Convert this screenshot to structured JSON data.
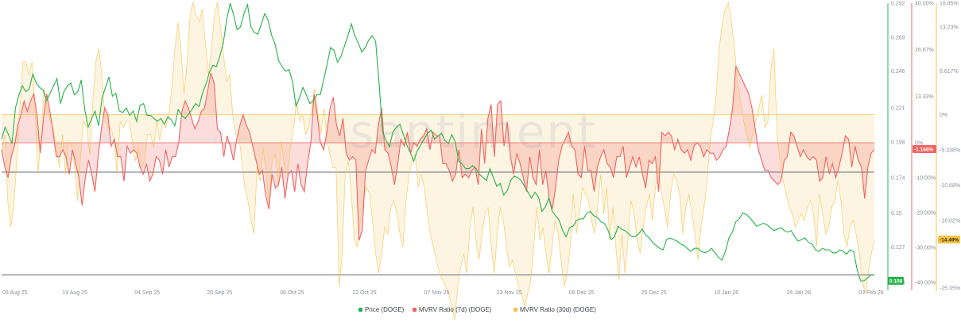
{
  "chart_data": {
    "type": "line",
    "watermark": "santiment",
    "x_tick_labels": [
      "03 Aug 25",
      "19 Aug 25",
      "04 Sep 25",
      "20 Sep 25",
      "06 Oct 25",
      "22 Oct 25",
      "07 Nov 25",
      "23 Nov 25",
      "09 Dec 25",
      "25 Dec 25",
      "10 Jan 26",
      "26 Jan 26",
      "03 Feb 26"
    ],
    "axes": {
      "price": {
        "ticks": [
          "0.292",
          "0.269",
          "0.246",
          "0.221",
          "0.198",
          "0.174",
          "0.15",
          "0.127",
          "0.103"
        ],
        "ylim": [
          0.103,
          0.292
        ],
        "color": "#26b24b"
      },
      "mvrv7d": {
        "ticks": [
          "40.00%",
          "26.67%",
          "13.33%",
          "0%",
          "-10.00%",
          "-20.00%",
          "-30.00%",
          "-40.00%"
        ],
        "ylim": [
          -40,
          40
        ],
        "color": "#f06461"
      },
      "mvrv30d": {
        "ticks": [
          "16.85%",
          "13.23%",
          "6.617%",
          "0%",
          "-5.338%",
          "-10.68%",
          "-16.02%",
          "-25.35%"
        ],
        "ylim": [
          -25.35,
          16.85
        ],
        "color": "#f5c34a"
      }
    },
    "badges": {
      "price": {
        "text": "0.108",
        "bg": "#26b24b",
        "fg": "#ffffff"
      },
      "mvrv7d": {
        "text": "-1.166%",
        "bg": "#f06461",
        "fg": "#ffffff"
      },
      "mvrv30d": {
        "text": "-14.49%",
        "bg": "#f5c34a",
        "fg": "#3a2f00"
      }
    },
    "series": [
      {
        "name": "Price (DOGE)",
        "color": "#26b24b",
        "axis": "price",
        "values": [
          0.2,
          0.208,
          0.203,
          0.197,
          0.221,
          0.23,
          0.236,
          0.232,
          0.234,
          0.244,
          0.238,
          0.235,
          0.233,
          0.226,
          0.231,
          0.236,
          0.241,
          0.224,
          0.232,
          0.236,
          0.238,
          0.23,
          0.232,
          0.24,
          0.22,
          0.208,
          0.214,
          0.219,
          0.209,
          0.228,
          0.235,
          0.242,
          0.229,
          0.231,
          0.219,
          0.218,
          0.221,
          0.216,
          0.219,
          0.212,
          0.223,
          0.224,
          0.216,
          0.216,
          0.214,
          0.212,
          0.214,
          0.21,
          0.215,
          0.213,
          0.209,
          0.22,
          0.216,
          0.214,
          0.217,
          0.22,
          0.224,
          0.222,
          0.231,
          0.237,
          0.245,
          0.25,
          0.249,
          0.256,
          0.265,
          0.281,
          0.292,
          0.284,
          0.274,
          0.276,
          0.285,
          0.291,
          0.276,
          0.272,
          0.271,
          0.278,
          0.285,
          0.28,
          0.27,
          0.264,
          0.253,
          0.249,
          0.246,
          0.247,
          0.239,
          0.222,
          0.228,
          0.235,
          0.23,
          0.224,
          0.226,
          0.23,
          0.23,
          0.24,
          0.251,
          0.262,
          0.26,
          0.252,
          0.256,
          0.263,
          0.27,
          0.278,
          0.27,
          0.265,
          0.259,
          0.262,
          0.267,
          0.27,
          0.266,
          0.238,
          0.205,
          0.199,
          0.195,
          0.205,
          0.208,
          0.21,
          0.203,
          0.196,
          0.191,
          0.185,
          0.192,
          0.196,
          0.2,
          0.204,
          0.206,
          0.2,
          0.202,
          0.204,
          0.199,
          0.197,
          0.203,
          0.198,
          0.185,
          0.183,
          0.18,
          0.18,
          0.182,
          0.18,
          0.176,
          0.174,
          0.172,
          0.18,
          0.174,
          0.168,
          0.17,
          0.162,
          0.165,
          0.172,
          0.175,
          0.174,
          0.172,
          0.168,
          0.164,
          0.16,
          0.164,
          0.161,
          0.151,
          0.154,
          0.16,
          0.151,
          0.148,
          0.145,
          0.138,
          0.134,
          0.14,
          0.141,
          0.145,
          0.146,
          0.146,
          0.15,
          0.151,
          0.148,
          0.147,
          0.144,
          0.143,
          0.139,
          0.132,
          0.134,
          0.141,
          0.139,
          0.138,
          0.136,
          0.134,
          0.134,
          0.136,
          0.139,
          0.135,
          0.133,
          0.13,
          0.128,
          0.126,
          0.125,
          0.132,
          0.133,
          0.132,
          0.131,
          0.129,
          0.128,
          0.126,
          0.124,
          0.126,
          0.126,
          0.124,
          0.123,
          0.124,
          0.126,
          0.123,
          0.12,
          0.118,
          0.124,
          0.133,
          0.137,
          0.144,
          0.146,
          0.15,
          0.149,
          0.147,
          0.144,
          0.141,
          0.142,
          0.143,
          0.142,
          0.14,
          0.138,
          0.139,
          0.14,
          0.138,
          0.137,
          0.138,
          0.134,
          0.131,
          0.132,
          0.133,
          0.13,
          0.129,
          0.125,
          0.124,
          0.126,
          0.125,
          0.125,
          0.123,
          0.123,
          0.125,
          0.124,
          0.122,
          0.125,
          0.124,
          0.112,
          0.104,
          0.104,
          0.106,
          0.108,
          0.108
        ]
      },
      {
        "name": "MVRV Ratio (7d) (DOGE)",
        "color": "#f06461",
        "axis": "mvrv7d",
        "values": [
          -2,
          -7,
          -10,
          -4,
          -1,
          5,
          8,
          12,
          9,
          12,
          14,
          8,
          -3,
          7,
          14,
          9,
          3,
          -4,
          -4,
          -2,
          -4,
          -9,
          -2,
          -6,
          -10,
          -18,
          -10,
          -5,
          -9,
          -14,
          -4,
          4,
          10,
          8,
          -1,
          1,
          -4,
          -4,
          -11,
          -1,
          -3,
          -2,
          -3,
          -7,
          -9,
          -6,
          -11,
          -9,
          -4,
          -5,
          -9,
          -2,
          -7,
          -4,
          -4,
          0,
          9,
          12,
          10,
          7,
          4,
          6,
          9,
          10,
          15,
          20,
          17,
          4,
          3,
          -4,
          2,
          -1,
          -5,
          1,
          5,
          8,
          5,
          3,
          -1,
          -5,
          -9,
          -8,
          -15,
          -19,
          -9,
          -13,
          -12,
          -7,
          -16,
          -9,
          -8,
          -14,
          -6,
          -12,
          -14,
          -6,
          0,
          14,
          8,
          0,
          -2,
          3,
          10,
          13,
          5,
          2,
          7,
          -3,
          -5,
          -4,
          -5,
          -28,
          -25,
          -8,
          -5,
          -2,
          -3,
          5,
          10,
          -2,
          -3,
          -7,
          -12,
          -6,
          1,
          -1,
          3,
          -3,
          0,
          -1,
          1,
          2,
          4,
          -2,
          3,
          2,
          2,
          -6,
          -6,
          -8,
          -11,
          -9,
          -2,
          -10,
          -9,
          -10,
          -8,
          -7,
          -12,
          4,
          -6,
          7,
          11,
          -4,
          11,
          12,
          -1,
          6,
          -4,
          -9,
          -3,
          -6,
          -10,
          -14,
          -4,
          -10,
          -12,
          -2,
          -12,
          -8,
          -16,
          -19,
          -13,
          -5,
          -1,
          1,
          3,
          -1,
          -2,
          -9,
          -10,
          -1,
          -8,
          -8,
          -14,
          -7,
          -4,
          -2,
          -6,
          -7,
          -10,
          -4,
          -4,
          -1,
          -10,
          -7,
          -4,
          -7,
          -4,
          -9,
          -13,
          -5,
          -6,
          -4,
          -14,
          3,
          2,
          3,
          2,
          -2,
          1,
          -2,
          -3,
          -2,
          -5,
          -1,
          0,
          -1,
          -4,
          -2,
          -3,
          -3,
          -5,
          -4,
          -2,
          -1,
          4,
          10,
          22,
          20,
          18,
          16,
          14,
          10,
          4,
          -2,
          -5,
          -8,
          -8,
          -10,
          -11,
          -12,
          -11,
          -5,
          -4,
          3,
          2,
          -1,
          -4,
          -2,
          -4,
          -5,
          -4,
          -5,
          -11,
          -10,
          -4,
          -9,
          -6,
          -10,
          -7,
          -3,
          2,
          1,
          -7,
          -1,
          -5,
          -7,
          -16,
          -7,
          -3,
          -2
        ]
      },
      {
        "name": "MVRV Ratio (30d) (DOGE)",
        "color": "#f5c34a",
        "axis": "mvrv30d",
        "values": [
          -6,
          -3,
          -13,
          -17,
          -14,
          -7,
          1,
          8,
          8,
          6,
          8,
          1,
          -9,
          -3,
          4,
          1,
          -1,
          -2,
          -5,
          -8,
          -3,
          -9,
          -4,
          -5,
          -8,
          -13,
          -6,
          -1,
          -2,
          -6,
          2,
          8,
          10,
          6,
          -1,
          -2,
          -2,
          -4,
          -9,
          -1,
          -2,
          -1,
          -1,
          -4,
          -7,
          -5,
          -8,
          -7,
          -3,
          -3,
          -5,
          -1,
          -4,
          -1,
          -2,
          0,
          4,
          10,
          14,
          10,
          3,
          8,
          15,
          17,
          15,
          14,
          16,
          11,
          6,
          10,
          15,
          17,
          13,
          9,
          5,
          6,
          0,
          -3,
          -3,
          -7,
          -11,
          -13,
          -16,
          -18,
          -8,
          -10,
          -5,
          -9,
          -14,
          -7,
          -6,
          -11,
          -4,
          -8,
          -9,
          -5,
          -2,
          2,
          -1,
          0,
          -3,
          -2,
          1,
          4,
          0,
          -3,
          1,
          -4,
          -6,
          -8,
          -8,
          -26,
          -21,
          -9,
          -7,
          -12,
          -19,
          -20,
          -16,
          -13,
          -11,
          -12,
          -16,
          -21,
          -24,
          -21,
          -17,
          -18,
          -14,
          -13,
          -15,
          -18,
          -20,
          -13,
          -9,
          -7,
          -6,
          -11,
          -9,
          -11,
          -15,
          -18,
          -20,
          -22,
          -24,
          -25,
          -26,
          -27,
          -29,
          -31,
          -26,
          -23,
          -21,
          -24,
          -17,
          -14,
          -19,
          -22,
          -18,
          -15,
          -14,
          -20,
          -24,
          -18,
          -14,
          -16,
          -20,
          -23,
          -22,
          -24,
          -26,
          -27,
          -29,
          -27,
          -25,
          -20,
          -14,
          -19,
          -17,
          -21,
          -24,
          -20,
          -16,
          -18,
          -22,
          -26,
          -24,
          -20,
          -12,
          -18,
          -15,
          -11,
          -12,
          -13,
          -16,
          -18,
          -14,
          -9,
          -15,
          -11,
          -19,
          -14,
          -20,
          -25,
          -18,
          -24,
          -19,
          -13,
          -15,
          -19,
          -21,
          -17,
          -14,
          -12,
          -16,
          -11,
          -8,
          -12,
          -14,
          -17,
          -12,
          -9,
          -10,
          -12,
          -18,
          -14,
          -12,
          -15,
          -18,
          -22,
          -17,
          -14,
          -10,
          -4,
          -1,
          3,
          10,
          14,
          16,
          17,
          14,
          10,
          5,
          2,
          -1,
          -3,
          -5,
          -3,
          -1,
          1,
          3,
          -2,
          -1,
          7,
          10,
          -3,
          -7,
          -10,
          -12,
          -14,
          -15,
          -17,
          -16,
          -15,
          -16,
          -14,
          -13,
          -15,
          -20,
          -12,
          -15,
          -18,
          -17,
          -14,
          -13,
          -10,
          -13,
          -18,
          -20,
          -17,
          -16,
          -18,
          -21,
          -25,
          -27,
          -24,
          -21,
          -19
        ]
      }
    ]
  }
}
